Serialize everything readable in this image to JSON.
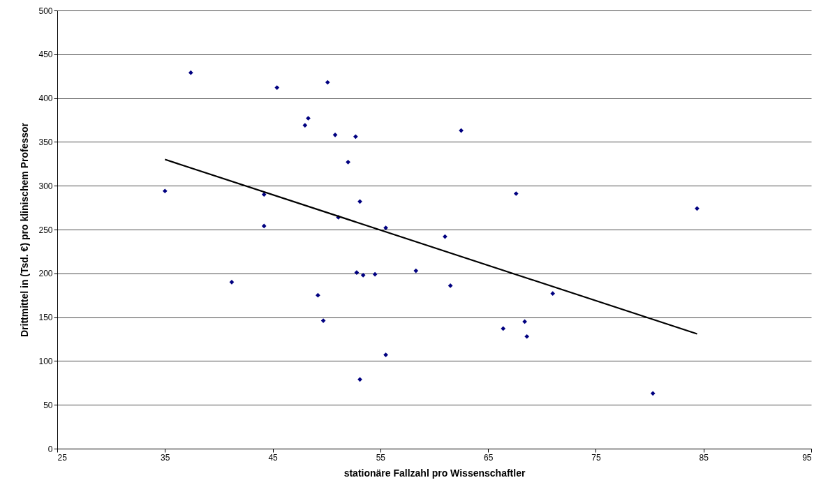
{
  "chart_data": {
    "type": "scatter",
    "xlabel": "stationäre Fallzahl pro Wissenschaftler",
    "ylabel": "Drittmittel in (Tsd. €) pro klinischem Professor",
    "xlim": [
      25,
      95
    ],
    "xticks": [
      25,
      35,
      45,
      55,
      65,
      75,
      85,
      95
    ],
    "ylim": [
      0,
      500
    ],
    "yticks": [
      0,
      50,
      100,
      150,
      200,
      250,
      300,
      350,
      400,
      450,
      500
    ],
    "grid": "y",
    "marker": "diamond",
    "series": [
      {
        "color": "#000080",
        "x": [
          35.0,
          37.4,
          41.2,
          44.2,
          44.2,
          45.4,
          48.0,
          48.3,
          49.2,
          49.7,
          50.1,
          50.8,
          51.1,
          52.0,
          52.7,
          52.8,
          53.1,
          53.1,
          53.4,
          54.5,
          55.5,
          55.5,
          58.3,
          61.0,
          61.5,
          62.5,
          66.4,
          67.6,
          68.4,
          68.6,
          71.0,
          80.3,
          84.4
        ],
        "values": [
          294,
          429,
          190,
          290,
          254,
          412,
          369,
          377,
          175,
          146,
          418,
          358,
          264,
          327,
          356,
          201,
          282,
          79,
          198,
          199,
          252,
          107,
          203,
          242,
          186,
          363,
          137,
          291,
          145,
          128,
          177,
          63,
          274
        ]
      },
      {
        "type": "line",
        "color": "#000000",
        "marker": "none",
        "line_style": "solid",
        "x": [
          35.0,
          84.4
        ],
        "values": [
          330,
          131
        ]
      }
    ]
  }
}
